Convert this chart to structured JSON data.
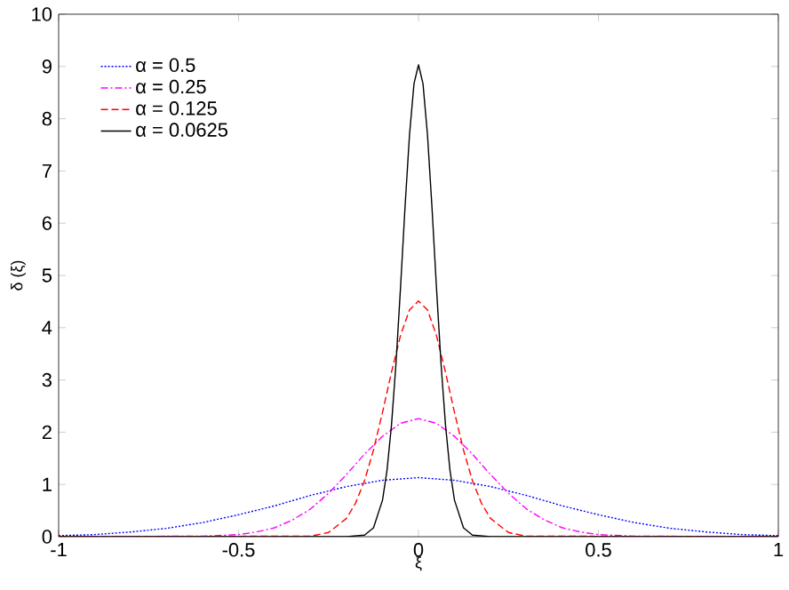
{
  "chart_data": {
    "type": "line",
    "xlabel": "ξ",
    "ylabel": "δ (ξ)",
    "xlim": [
      -1,
      1
    ],
    "ylim": [
      0,
      10
    ],
    "xticks": [
      -1,
      -0.5,
      0,
      0.5,
      1
    ],
    "yticks": [
      0,
      1,
      2,
      3,
      4,
      5,
      6,
      7,
      8,
      9,
      10
    ],
    "legend": "top left",
    "grid": false,
    "marker": "none",
    "series": [
      {
        "name": "α = 0.5",
        "color": "#0000ff",
        "line_style": "dotted",
        "x": [
          -1,
          -0.9,
          -0.8,
          -0.7,
          -0.6,
          -0.5,
          -0.4,
          -0.3,
          -0.2,
          -0.1,
          0,
          0.1,
          0.2,
          0.3,
          0.4,
          0.5,
          0.6,
          0.7,
          0.8,
          0.9,
          1
        ],
        "values": [
          0.02,
          0.04,
          0.09,
          0.16,
          0.27,
          0.42,
          0.59,
          0.79,
          0.96,
          1.08,
          1.13,
          1.08,
          0.96,
          0.79,
          0.59,
          0.42,
          0.27,
          0.16,
          0.09,
          0.04,
          0.02
        ]
      },
      {
        "name": "α = 0.25",
        "color": "#ff00ff",
        "line_style": "dashdot",
        "x": [
          -1,
          -0.6,
          -0.5,
          -0.45,
          -0.4,
          -0.35,
          -0.3,
          -0.25,
          -0.2,
          -0.15,
          -0.1,
          -0.05,
          0,
          0.05,
          0.1,
          0.15,
          0.2,
          0.25,
          0.3,
          0.35,
          0.4,
          0.45,
          0.5,
          0.6,
          1
        ],
        "values": [
          0,
          0.01,
          0.04,
          0.09,
          0.17,
          0.32,
          0.53,
          0.83,
          1.19,
          1.58,
          1.92,
          2.17,
          2.26,
          2.17,
          1.92,
          1.58,
          1.19,
          0.83,
          0.53,
          0.32,
          0.17,
          0.09,
          0.04,
          0.01,
          0
        ]
      },
      {
        "name": "α = 0.125",
        "color": "#ff0000",
        "line_style": "dashed",
        "x": [
          -1,
          -0.3,
          -0.25,
          -0.2,
          -0.175,
          -0.15,
          -0.125,
          -0.1,
          -0.075,
          -0.05,
          -0.025,
          0,
          0.025,
          0.05,
          0.075,
          0.1,
          0.125,
          0.15,
          0.175,
          0.2,
          0.25,
          0.3,
          1
        ],
        "values": [
          0,
          0.01,
          0.08,
          0.35,
          0.64,
          1.07,
          1.66,
          2.38,
          3.15,
          3.85,
          4.34,
          4.51,
          4.34,
          3.85,
          3.15,
          2.38,
          1.66,
          1.07,
          0.64,
          0.35,
          0.08,
          0.01,
          0
        ]
      },
      {
        "name": "α = 0.0625",
        "color": "#000000",
        "line_style": "solid",
        "x": [
          -1,
          -0.2,
          -0.15,
          -0.125,
          -0.1,
          -0.0875,
          -0.075,
          -0.0625,
          -0.05,
          -0.0375,
          -0.025,
          -0.0125,
          0,
          0.0125,
          0.025,
          0.0375,
          0.05,
          0.0625,
          0.075,
          0.0875,
          0.1,
          0.125,
          0.15,
          0.2,
          1
        ],
        "values": [
          0,
          0,
          0.03,
          0.17,
          0.7,
          1.27,
          2.14,
          3.32,
          4.76,
          6.3,
          7.69,
          8.67,
          9.03,
          8.67,
          7.69,
          6.3,
          4.76,
          3.32,
          2.14,
          1.27,
          0.7,
          0.17,
          0.03,
          0,
          0
        ]
      }
    ]
  }
}
